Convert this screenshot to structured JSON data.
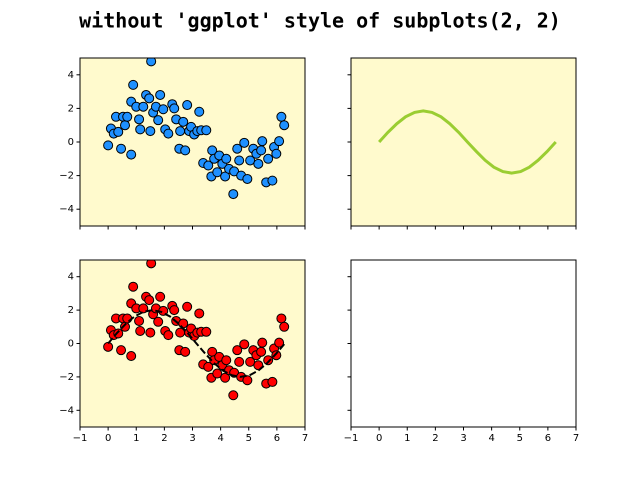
{
  "title": "without 'ggplot' style of subplots(2, 2)",
  "chart_data": [
    {
      "type": "scatter",
      "facecolor": "#fffacd",
      "xticklabels": false,
      "yticklabels": true,
      "xlim": [
        -1,
        7
      ],
      "ylim": [
        -5,
        5
      ],
      "xticks": [
        {
          "value": -1,
          "label": "−1"
        },
        0,
        1,
        2,
        3,
        4,
        5,
        6,
        7
      ],
      "yticks": [
        {
          "value": -4,
          "label": "−4"
        },
        {
          "value": -2,
          "label": "−2"
        },
        0,
        2,
        4
      ],
      "series": [
        {
          "color": "#1e90ff",
          "x": [
            0,
            0.1,
            0.2,
            0.28,
            0.36,
            0.46,
            0.53,
            0.6,
            0.68,
            0.82,
            0.89,
            0.82,
            1.0,
            1.1,
            1.14,
            1.25,
            1.35,
            1.46,
            1.53,
            1.5,
            1.6,
            1.7,
            1.78,
            1.85,
            1.96,
            2.03,
            2.14,
            2.28,
            2.35,
            2.42,
            2.53,
            2.56,
            2.67,
            2.74,
            2.81,
            2.88,
            2.95,
            3.06,
            3.17,
            3.24,
            3.31,
            3.38,
            3.49,
            3.56,
            3.67,
            3.7,
            3.77,
            3.88,
            3.95,
            4.06,
            4.16,
            4.2,
            4.3,
            4.45,
            4.48,
            4.59,
            4.66,
            4.73,
            4.84,
            4.95,
            5.05,
            5.16,
            5.27,
            5.34,
            5.44,
            5.48,
            5.62,
            5.69,
            5.84,
            5.9,
            5.98,
            6.08,
            6.16,
            6.26
          ],
          "values": [
            -0.2,
            0.8,
            0.5,
            1.5,
            0.6,
            -0.4,
            1.5,
            1.0,
            1.5,
            -0.75,
            3.4,
            2.4,
            2.1,
            1.35,
            0.75,
            2.1,
            2.8,
            2.6,
            4.8,
            0.65,
            1.75,
            2.1,
            1.3,
            2.8,
            1.95,
            0.75,
            0.5,
            2.25,
            2.0,
            1.35,
            -0.4,
            0.65,
            1.2,
            -0.5,
            2.2,
            0.65,
            0.9,
            0.45,
            0.65,
            1.8,
            0.7,
            -1.25,
            0.7,
            -1.4,
            -2.05,
            -0.5,
            -1.0,
            -1.8,
            -0.8,
            -1.3,
            -2.05,
            -1.0,
            -1.6,
            -3.1,
            -1.75,
            -0.4,
            -1.1,
            -2.0,
            -0.05,
            -2.2,
            -1.1,
            -0.4,
            -0.7,
            -1.3,
            -0.5,
            0.05,
            -2.4,
            -1.0,
            -2.3,
            -0.3,
            -0.7,
            0.05,
            1.5,
            1.0
          ]
        }
      ]
    },
    {
      "type": "line",
      "facecolor": "#fffacd",
      "xticklabels": false,
      "yticklabels": false,
      "xlim": [
        -1,
        7
      ],
      "ylim": [
        -5,
        5
      ],
      "xticks": [
        {
          "value": -1,
          "label": "−1"
        },
        0,
        1,
        2,
        3,
        4,
        5,
        6,
        7
      ],
      "yticks": [
        {
          "value": -4,
          "label": "−4"
        },
        {
          "value": -2,
          "label": "−2"
        },
        0,
        2,
        4
      ],
      "series": [
        {
          "color": "#9acd32",
          "width": 3,
          "x": [
            0,
            0.31,
            0.63,
            0.94,
            1.26,
            1.57,
            1.88,
            2.2,
            2.51,
            2.83,
            3.14,
            3.46,
            3.77,
            4.08,
            4.4,
            4.71,
            5.03,
            5.34,
            5.65,
            5.97,
            6.28
          ],
          "values": [
            0,
            0.57,
            1.09,
            1.5,
            1.76,
            1.85,
            1.76,
            1.5,
            1.09,
            0.57,
            0,
            -0.57,
            -1.09,
            -1.5,
            -1.76,
            -1.85,
            -1.76,
            -1.5,
            -1.09,
            -0.57,
            0
          ]
        }
      ]
    },
    {
      "type": "scatter",
      "facecolor": "#fffacd",
      "xticklabels": true,
      "yticklabels": true,
      "xlim": [
        -1,
        7
      ],
      "ylim": [
        -5,
        5
      ],
      "xticks": [
        {
          "value": -1,
          "label": "−1"
        },
        0,
        1,
        2,
        3,
        4,
        5,
        6,
        7
      ],
      "yticks": [
        {
          "value": -4,
          "label": "−4"
        },
        {
          "value": -2,
          "label": "−2"
        },
        0,
        2,
        4
      ],
      "series": [
        {
          "color": "#ff0000",
          "x": [
            0,
            0.1,
            0.2,
            0.28,
            0.36,
            0.46,
            0.53,
            0.6,
            0.68,
            0.82,
            0.89,
            0.82,
            1.0,
            1.1,
            1.14,
            1.25,
            1.35,
            1.46,
            1.53,
            1.5,
            1.6,
            1.7,
            1.78,
            1.85,
            1.96,
            2.03,
            2.14,
            2.28,
            2.35,
            2.42,
            2.53,
            2.56,
            2.67,
            2.74,
            2.81,
            2.88,
            2.95,
            3.06,
            3.17,
            3.24,
            3.31,
            3.38,
            3.49,
            3.56,
            3.67,
            3.7,
            3.77,
            3.88,
            3.95,
            4.06,
            4.16,
            4.2,
            4.3,
            4.45,
            4.48,
            4.59,
            4.66,
            4.73,
            4.84,
            4.95,
            5.05,
            5.16,
            5.27,
            5.34,
            5.44,
            5.48,
            5.62,
            5.69,
            5.84,
            5.9,
            5.98,
            6.08,
            6.16,
            6.26
          ],
          "values": [
            -0.2,
            0.8,
            0.5,
            1.5,
            0.6,
            -0.4,
            1.5,
            1.0,
            1.5,
            -0.75,
            3.4,
            2.4,
            2.1,
            1.35,
            0.75,
            2.1,
            2.8,
            2.6,
            4.8,
            0.65,
            1.75,
            2.1,
            1.3,
            2.8,
            1.95,
            0.75,
            0.5,
            2.25,
            2.0,
            1.35,
            -0.4,
            0.65,
            1.2,
            -0.5,
            2.2,
            0.65,
            0.9,
            0.45,
            0.65,
            1.8,
            0.7,
            -1.25,
            0.7,
            -1.4,
            -2.05,
            -0.5,
            -1.0,
            -1.8,
            -0.8,
            -1.3,
            -2.05,
            -1.0,
            -1.6,
            -3.1,
            -1.75,
            -0.4,
            -1.1,
            -2.0,
            -0.05,
            -2.2,
            -1.1,
            -0.4,
            -0.7,
            -1.3,
            -0.5,
            0.05,
            -2.4,
            -1.0,
            -2.3,
            -0.3,
            -0.7,
            0.05,
            1.5,
            1.0
          ]
        },
        {
          "type": "line",
          "color": "#000000",
          "width": 2,
          "dashed": true,
          "x": [
            0,
            0.31,
            0.63,
            0.94,
            1.26,
            1.57,
            1.88,
            2.2,
            2.51,
            2.83,
            3.14,
            3.46,
            3.77,
            4.08,
            4.4,
            4.71,
            5.03,
            5.34,
            5.65,
            5.97,
            6.28
          ],
          "values": [
            0,
            0.62,
            1.18,
            1.62,
            1.9,
            2,
            1.9,
            1.62,
            1.18,
            0.62,
            0,
            -0.62,
            -1.18,
            -1.62,
            -1.9,
            -2,
            -1.9,
            -1.62,
            -1.18,
            -0.62,
            0
          ]
        }
      ]
    },
    {
      "type": "line",
      "facecolor": "#ffffff",
      "xticklabels": true,
      "yticklabels": false,
      "xlim": [
        -1,
        7
      ],
      "ylim": [
        -5,
        5
      ],
      "xticks": [
        {
          "value": -1,
          "label": "−1"
        },
        0,
        1,
        2,
        3,
        4,
        5,
        6,
        7
      ],
      "yticks": [
        {
          "value": -4,
          "label": "−4"
        },
        {
          "value": -2,
          "label": "−2"
        },
        0,
        2,
        4
      ],
      "series": []
    }
  ]
}
